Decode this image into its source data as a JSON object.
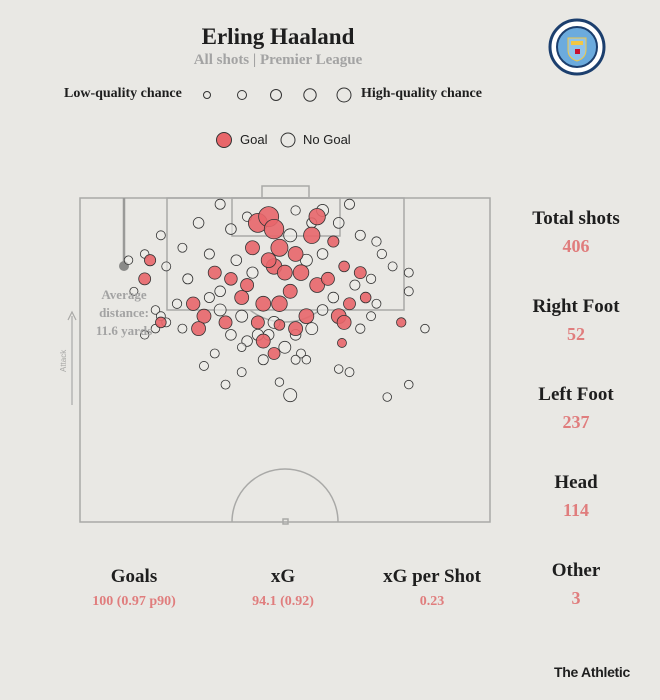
{
  "header": {
    "title": "Erling Haaland",
    "subtitle": "All shots | Premier League",
    "logo_text": "MANCHESTER CITY"
  },
  "legend": {
    "low_label": "Low-quality chance",
    "high_label": "High-quality chance",
    "goal_label": "Goal",
    "no_goal_label": "No Goal"
  },
  "colors": {
    "goal": "#e8666a",
    "no_goal": "#eeede9",
    "background": "#e9e8e4",
    "value_text": "#e07d7d"
  },
  "average": {
    "label_line1": "Average",
    "label_line2": "distance:",
    "label_line3": "11.6 yards"
  },
  "attack_label": "Attack",
  "side_stats": [
    {
      "label": "Total shots",
      "value": "406"
    },
    {
      "label": "Right Foot",
      "value": "52"
    },
    {
      "label": "Left Foot",
      "value": "237"
    },
    {
      "label": "Head",
      "value": "114"
    },
    {
      "label": "Other",
      "value": "3"
    }
  ],
  "bottom_stats": [
    {
      "label": "Goals",
      "value": "100 (0.97 p90)"
    },
    {
      "label": "xG",
      "value": "94.1 (0.92)"
    },
    {
      "label": "xG per Shot",
      "value": "0.23"
    }
  ],
  "brand": "The Athletic",
  "chart_data": {
    "type": "scatter",
    "title": "Erling Haaland",
    "subtitle": "All shots | Premier League",
    "fields": [
      "x_yards_across",
      "y_yards_from_goal_line",
      "xg",
      "goal"
    ],
    "shots": [
      [
        33,
        4,
        0.6,
        1
      ],
      [
        35,
        3,
        0.7,
        1
      ],
      [
        36,
        5,
        0.65,
        1
      ],
      [
        44,
        3,
        0.4,
        1
      ],
      [
        37,
        8,
        0.45,
        1
      ],
      [
        40,
        9,
        0.3,
        1
      ],
      [
        36,
        11,
        0.35,
        1
      ],
      [
        43,
        6,
        0.4,
        1
      ],
      [
        41,
        12,
        0.35,
        1
      ],
      [
        44,
        14,
        0.3,
        1
      ],
      [
        30,
        16,
        0.25,
        1
      ],
      [
        25,
        12,
        0.2,
        1
      ],
      [
        23,
        19,
        0.25,
        1
      ],
      [
        31,
        14,
        0.2,
        1
      ],
      [
        34,
        17,
        0.3,
        1
      ],
      [
        37,
        17,
        0.35,
        1
      ],
      [
        38,
        12,
        0.3,
        1
      ],
      [
        42,
        19,
        0.3,
        1
      ],
      [
        46,
        13,
        0.2,
        1
      ],
      [
        21,
        17,
        0.22,
        1
      ],
      [
        27,
        20,
        0.2,
        1
      ],
      [
        33,
        20,
        0.2,
        1
      ],
      [
        40,
        21,
        0.25,
        1
      ],
      [
        48,
        19,
        0.3,
        1
      ],
      [
        49,
        20,
        0.25,
        1
      ],
      [
        50,
        17,
        0.15,
        1
      ],
      [
        52,
        12,
        0.15,
        1
      ],
      [
        12,
        13,
        0.15,
        1
      ],
      [
        13,
        10,
        0.12,
        1
      ],
      [
        22,
        21,
        0.25,
        1
      ],
      [
        34,
        23,
        0.25,
        1
      ],
      [
        36,
        25,
        0.15,
        1
      ],
      [
        53,
        16,
        0.1,
        1
      ],
      [
        15,
        20,
        0.1,
        1
      ],
      [
        28,
        13,
        0.18,
        1
      ],
      [
        39,
        15,
        0.25,
        1
      ],
      [
        35,
        10,
        0.3,
        1
      ],
      [
        32,
        8,
        0.25,
        1
      ],
      [
        47,
        7,
        0.12,
        1
      ],
      [
        49,
        11,
        0.1,
        1
      ],
      [
        59.6,
        20,
        0.06,
        1
      ],
      [
        48.6,
        23.3,
        0.05,
        1
      ],
      [
        37,
        20.4,
        0.1,
        1
      ],
      [
        26,
        1,
        0.08,
        0
      ],
      [
        19,
        8,
        0.05,
        0
      ],
      [
        28,
        5,
        0.1,
        0
      ],
      [
        45,
        2,
        0.15,
        0
      ],
      [
        48,
        4,
        0.1,
        0
      ],
      [
        50,
        1,
        0.08,
        0
      ],
      [
        52,
        6,
        0.08,
        0
      ],
      [
        55,
        7,
        0.06,
        0
      ],
      [
        56,
        9,
        0.06,
        0
      ],
      [
        58,
        11,
        0.05,
        0
      ],
      [
        61,
        15,
        0.05,
        0
      ],
      [
        61,
        12,
        0.05,
        0
      ],
      [
        10,
        15,
        0.03,
        0
      ],
      [
        12,
        9,
        0.04,
        0
      ],
      [
        15,
        6,
        0.05,
        0
      ],
      [
        16,
        11,
        0.05,
        0
      ],
      [
        20,
        13,
        0.08,
        0
      ],
      [
        24,
        9,
        0.08,
        0
      ],
      [
        26,
        15,
        0.1,
        0
      ],
      [
        29,
        10,
        0.1,
        0
      ],
      [
        32,
        12,
        0.12,
        0
      ],
      [
        39,
        6,
        0.2,
        0
      ],
      [
        42,
        10,
        0.15,
        0
      ],
      [
        45,
        9,
        0.1,
        0
      ],
      [
        47,
        16,
        0.1,
        0
      ],
      [
        51,
        14,
        0.08,
        0
      ],
      [
        54,
        13,
        0.06,
        0
      ],
      [
        55,
        17,
        0.05,
        0
      ],
      [
        54,
        19,
        0.05,
        0
      ],
      [
        24,
        16,
        0.08,
        0
      ],
      [
        18,
        17,
        0.06,
        0
      ],
      [
        16,
        20,
        0.05,
        0
      ],
      [
        14,
        18,
        0.04,
        0
      ],
      [
        19,
        21,
        0.05,
        0
      ],
      [
        26,
        18,
        0.15,
        0
      ],
      [
        30,
        19,
        0.15,
        0
      ],
      [
        33,
        22,
        0.12,
        0
      ],
      [
        36,
        20,
        0.15,
        0
      ],
      [
        40,
        22,
        0.1,
        0
      ],
      [
        43,
        21,
        0.15,
        0
      ],
      [
        45,
        18,
        0.1,
        0
      ],
      [
        52,
        21,
        0.06,
        0
      ],
      [
        28,
        22,
        0.1,
        0
      ],
      [
        31,
        23,
        0.1,
        0
      ],
      [
        38,
        24,
        0.15,
        0
      ],
      [
        25,
        25,
        0.05,
        0
      ],
      [
        30,
        28,
        0.05,
        0
      ],
      [
        34,
        26,
        0.08,
        0
      ],
      [
        35,
        22,
        0.1,
        0
      ],
      [
        41,
        25,
        0.05,
        0
      ],
      [
        12,
        22,
        0.04,
        0
      ],
      [
        14,
        21,
        0.04,
        0
      ],
      [
        15,
        19,
        0.05,
        0
      ],
      [
        23,
        27,
        0.05,
        0
      ],
      [
        27,
        30,
        0.05,
        0
      ],
      [
        40,
        26,
        0.05,
        0
      ],
      [
        50,
        28,
        0.05,
        0
      ],
      [
        57,
        32,
        0.04,
        0
      ],
      [
        61,
        30,
        0.04,
        0
      ],
      [
        64,
        21,
        0.04,
        0
      ],
      [
        9,
        10,
        0.04,
        0
      ],
      [
        22,
        4,
        0.1,
        0
      ],
      [
        31,
        3,
        0.06,
        0
      ],
      [
        40,
        2,
        0.06,
        0
      ],
      [
        43,
        4,
        0.08,
        0
      ],
      [
        39,
        31.7,
        0.2,
        0
      ],
      [
        37,
        29.6,
        0.04,
        0
      ],
      [
        42,
        26,
        0.04,
        0
      ],
      [
        48,
        27.5,
        0.04,
        0
      ],
      [
        30,
        24,
        0.04,
        0
      ]
    ],
    "average_distance_yards": 11.6
  }
}
